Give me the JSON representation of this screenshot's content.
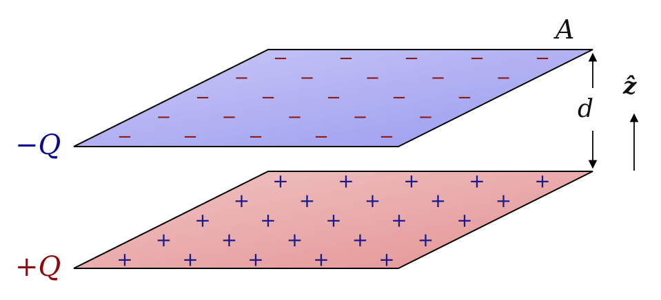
{
  "labels": {
    "area": "A",
    "separation": "d",
    "direction": "ẑ",
    "top_plate_charge": "−Q",
    "bottom_plate_charge": "+Q"
  },
  "plates": {
    "top": {
      "charge_sign": "−",
      "fill_light": "#c9c9f7",
      "fill_dark": "#9a9aef",
      "charge_color": "#8b1a1a",
      "rows": 5,
      "per_row": 5
    },
    "bottom": {
      "charge_sign": "+",
      "fill_light": "#efc4c4",
      "fill_dark": "#e59393",
      "charge_color": "#1a1a8b",
      "rows": 5,
      "per_row": 5
    }
  },
  "colors": {
    "negative_label": "#0a0a8c",
    "positive_label": "#8c0a0a",
    "outline": "#000000"
  }
}
